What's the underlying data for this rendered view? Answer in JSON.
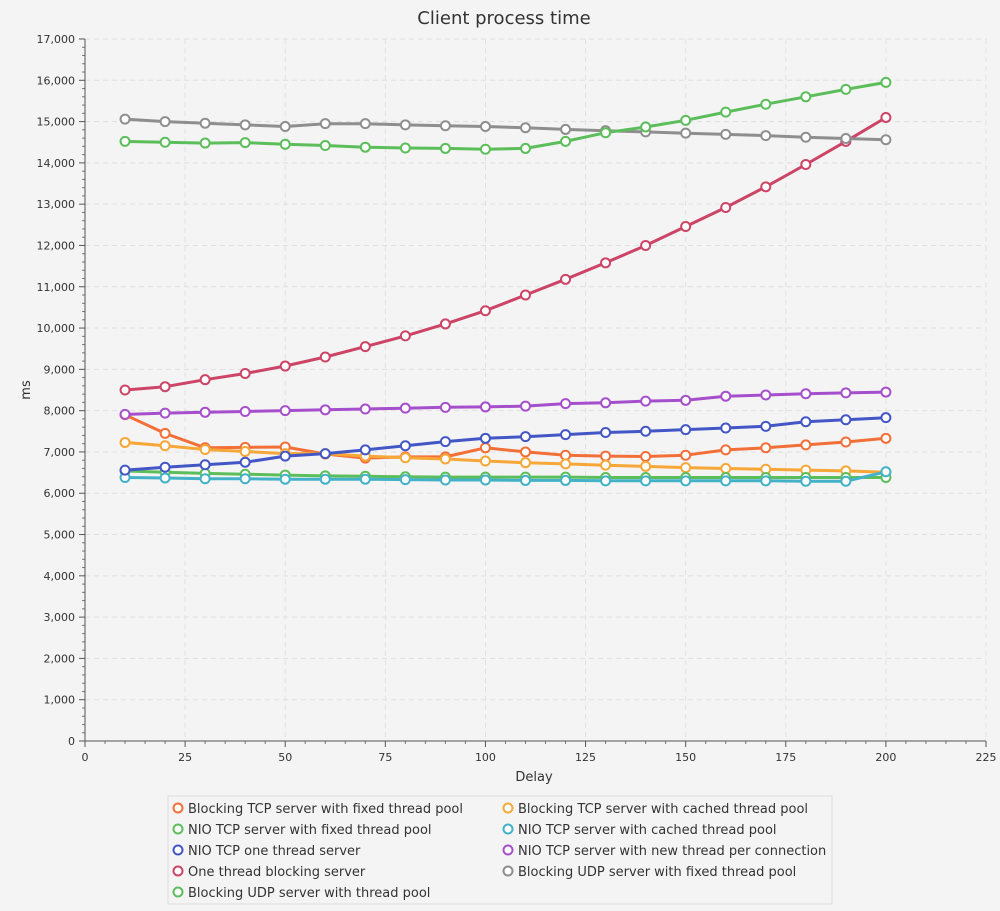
{
  "chart_data": {
    "type": "line",
    "title": "Client process time",
    "xlabel": "Delay",
    "ylabel": "ms",
    "xlim": [
      0,
      225
    ],
    "ylim": [
      0,
      17000
    ],
    "xticks": [
      0,
      25,
      50,
      75,
      100,
      125,
      150,
      175,
      200,
      225
    ],
    "yticks": [
      0,
      1000,
      2000,
      3000,
      4000,
      5000,
      6000,
      7000,
      8000,
      9000,
      10000,
      11000,
      12000,
      13000,
      14000,
      15000,
      16000,
      17000
    ],
    "xtick_labels": [
      "0",
      "25",
      "50",
      "75",
      "100",
      "125",
      "150",
      "175",
      "200",
      "225"
    ],
    "ytick_labels": [
      "0",
      "1,000",
      "2,000",
      "3,000",
      "4,000",
      "5,000",
      "6,000",
      "7,000",
      "8,000",
      "9,000",
      "10,000",
      "11,000",
      "12,000",
      "13,000",
      "14,000",
      "15,000",
      "16,000",
      "17,000"
    ],
    "grid": true,
    "legend_position": "bottom",
    "x": [
      10,
      20,
      30,
      40,
      50,
      60,
      70,
      80,
      90,
      100,
      110,
      120,
      130,
      140,
      150,
      160,
      170,
      180,
      190,
      200
    ],
    "series": [
      {
        "name": "Blocking TCP server with fixed thread pool",
        "color": "#f26f38",
        "values": [
          7900,
          7450,
          7100,
          7110,
          7120,
          6950,
          6850,
          6880,
          6880,
          7100,
          7000,
          6920,
          6900,
          6890,
          6920,
          7050,
          7100,
          7170,
          7240,
          7330
        ]
      },
      {
        "name": "Blocking TCP server with cached thread pool",
        "color": "#f7a737",
        "values": [
          7230,
          7150,
          7060,
          7010,
          6960,
          6960,
          6900,
          6860,
          6830,
          6780,
          6740,
          6710,
          6680,
          6650,
          6620,
          6600,
          6580,
          6560,
          6540,
          6510
        ]
      },
      {
        "name": "NIO TCP server with fixed thread pool",
        "color": "#5cbe5a",
        "values": [
          6540,
          6510,
          6480,
          6460,
          6440,
          6420,
          6410,
          6400,
          6390,
          6390,
          6390,
          6390,
          6380,
          6380,
          6380,
          6380,
          6380,
          6380,
          6380,
          6380
        ]
      },
      {
        "name": "NIO TCP server with cached thread pool",
        "color": "#43b1c8",
        "values": [
          6380,
          6370,
          6350,
          6350,
          6340,
          6340,
          6340,
          6330,
          6320,
          6320,
          6310,
          6310,
          6300,
          6300,
          6300,
          6300,
          6300,
          6290,
          6290,
          6520
        ]
      },
      {
        "name": "NIO TCP one thread server",
        "color": "#4356c6",
        "values": [
          6560,
          6630,
          6690,
          6750,
          6900,
          6960,
          7050,
          7150,
          7250,
          7330,
          7370,
          7420,
          7470,
          7500,
          7540,
          7580,
          7620,
          7730,
          7780,
          7830
        ]
      },
      {
        "name": "NIO TCP server with new thread per connection",
        "color": "#a64fcd",
        "values": [
          7910,
          7940,
          7960,
          7980,
          8000,
          8020,
          8040,
          8060,
          8080,
          8090,
          8110,
          8170,
          8190,
          8230,
          8250,
          8350,
          8380,
          8410,
          8430,
          8450
        ]
      },
      {
        "name": "One thread blocking server",
        "color": "#cc4466",
        "values": [
          8500,
          8580,
          8750,
          8900,
          9080,
          9300,
          9550,
          9810,
          10100,
          10420,
          10800,
          11180,
          11580,
          12000,
          12460,
          12920,
          13420,
          13960,
          14520,
          15100
        ]
      },
      {
        "name": "Blocking UDP server with fixed thread pool",
        "color": "#8e8e8e",
        "values": [
          15060,
          15000,
          14960,
          14920,
          14880,
          14950,
          14950,
          14920,
          14900,
          14880,
          14850,
          14810,
          14780,
          14750,
          14720,
          14690,
          14660,
          14620,
          14590,
          14560
        ]
      },
      {
        "name": "Blocking UDP server with thread pool",
        "color": "#5cbe5a",
        "values": [
          14520,
          14500,
          14480,
          14490,
          14450,
          14420,
          14380,
          14360,
          14350,
          14330,
          14350,
          14520,
          14730,
          14870,
          15030,
          15230,
          15420,
          15600,
          15780,
          15950
        ]
      }
    ]
  }
}
